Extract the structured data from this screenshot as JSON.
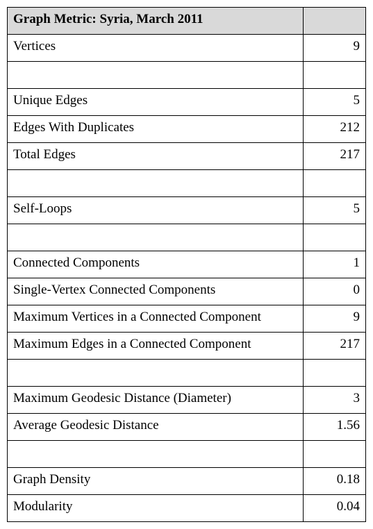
{
  "table": {
    "title": "Graph Metric: Syria, March 2011",
    "header_bg": "#d9d9d9",
    "border_color": "#000000",
    "text_color": "#000000",
    "label_col_width": 440,
    "value_col_width": 77,
    "font_family": "Times New Roman",
    "title_fontsize": 19,
    "cell_fontsize": 19,
    "rows": [
      {
        "type": "data",
        "label": "Vertices",
        "value": "9"
      },
      {
        "type": "spacer"
      },
      {
        "type": "data",
        "label": "Unique Edges",
        "value": "5"
      },
      {
        "type": "data",
        "label": "Edges With Duplicates",
        "value": "212"
      },
      {
        "type": "data",
        "label": "Total Edges",
        "value": "217"
      },
      {
        "type": "spacer"
      },
      {
        "type": "data",
        "label": "Self-Loops",
        "value": "5"
      },
      {
        "type": "spacer"
      },
      {
        "type": "data",
        "label": "Connected Components",
        "value": "1"
      },
      {
        "type": "data",
        "label": "Single-Vertex Connected Components",
        "value": "0"
      },
      {
        "type": "data",
        "label": "Maximum Vertices in a Connected Component",
        "value": "9"
      },
      {
        "type": "data",
        "label": "Maximum Edges in a Connected Component",
        "value": "217"
      },
      {
        "type": "spacer"
      },
      {
        "type": "data",
        "label": "Maximum Geodesic Distance (Diameter)",
        "value": "3"
      },
      {
        "type": "data",
        "label": "Average Geodesic Distance",
        "value": "1.56"
      },
      {
        "type": "spacer"
      },
      {
        "type": "data",
        "label": "Graph Density",
        "value": "0.18"
      },
      {
        "type": "data",
        "label": "Modularity",
        "value": "0.04"
      }
    ]
  }
}
